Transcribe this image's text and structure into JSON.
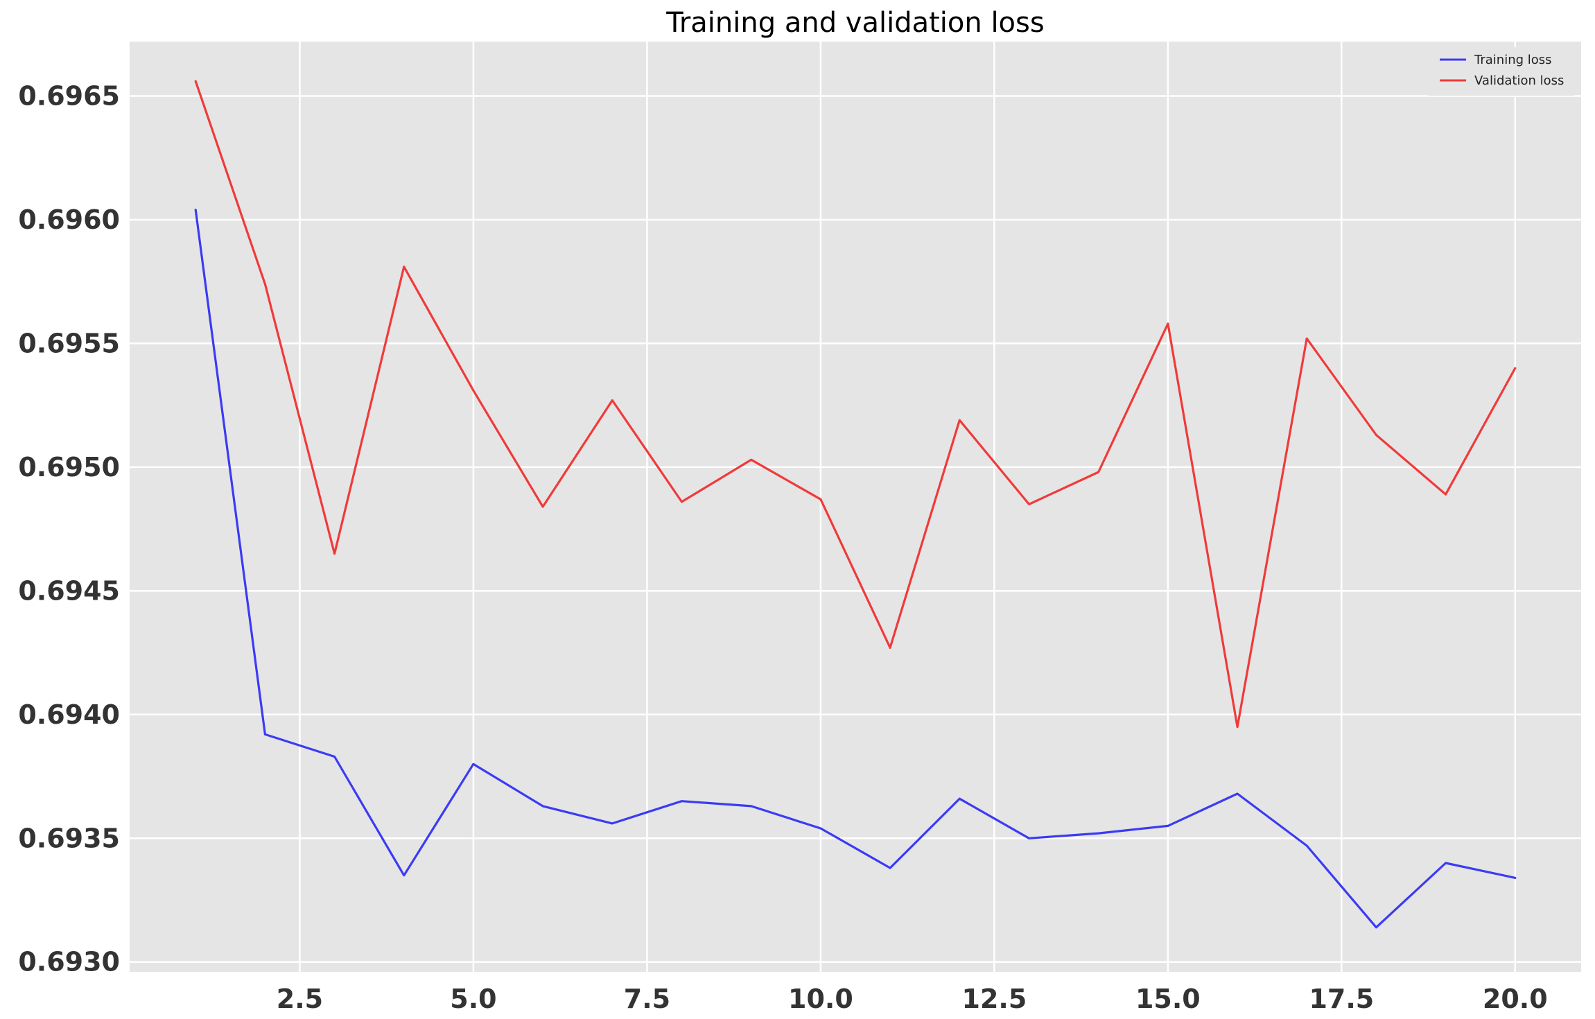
{
  "chart_data": {
    "type": "line",
    "title": "Training and validation loss",
    "xlabel": "",
    "ylabel": "",
    "x": [
      1,
      2,
      3,
      4,
      5,
      6,
      7,
      8,
      9,
      10,
      11,
      12,
      13,
      14,
      15,
      16,
      17,
      18,
      19,
      20
    ],
    "series": [
      {
        "name": "Training loss",
        "color": "#3b3bf5",
        "values": [
          0.69604,
          0.69392,
          0.69383,
          0.69335,
          0.6938,
          0.69363,
          0.69356,
          0.69365,
          0.69363,
          0.69354,
          0.69338,
          0.69366,
          0.6935,
          0.69352,
          0.69355,
          0.69368,
          0.69347,
          0.69314,
          0.6934,
          0.69334
        ]
      },
      {
        "name": "Validation loss",
        "color": "#f03a3a",
        "values": [
          0.69656,
          0.69574,
          0.69465,
          0.69581,
          0.69531,
          0.69484,
          0.69527,
          0.69486,
          0.69503,
          0.69487,
          0.69427,
          0.69519,
          0.69485,
          0.69498,
          0.69558,
          0.69395,
          0.69552,
          0.69513,
          0.69489,
          0.6954
        ]
      }
    ],
    "xlim": [
      0.05,
      20.95
    ],
    "ylim": [
      0.69296,
      0.69672
    ],
    "xticks": [
      2.5,
      5.0,
      7.5,
      10.0,
      12.5,
      15.0,
      17.5,
      20.0
    ],
    "xtick_labels": [
      "2.5",
      "5.0",
      "7.5",
      "10.0",
      "12.5",
      "15.0",
      "17.5",
      "20.0"
    ],
    "yticks": [
      0.693,
      0.6935,
      0.694,
      0.6945,
      0.695,
      0.6955,
      0.696,
      0.6965
    ],
    "ytick_labels": [
      "0.6930",
      "0.6935",
      "0.6940",
      "0.6945",
      "0.6950",
      "0.6955",
      "0.6960",
      "0.6965"
    ],
    "grid": true,
    "legend_position": "top-right",
    "plot_background": "#e5e5e5",
    "grid_color": "#ffffff"
  }
}
